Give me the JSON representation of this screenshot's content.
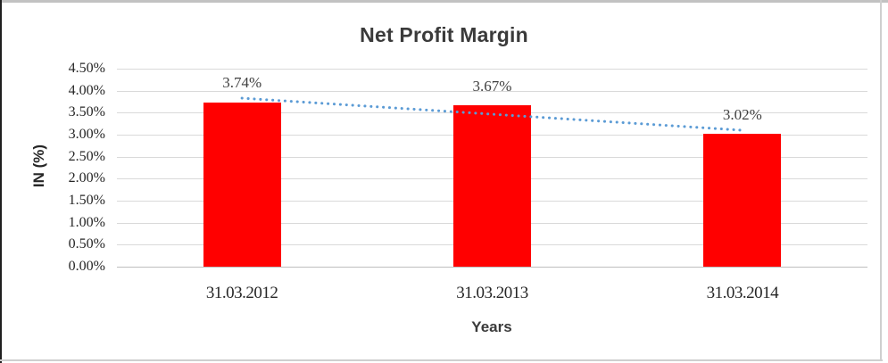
{
  "chart_data": {
    "type": "bar",
    "title": "Net Profit Margin",
    "xlabel": "Years",
    "ylabel": "IN (%)",
    "categories": [
      "31.03.2012",
      "31.03.2013",
      "31.03.2014"
    ],
    "values": [
      3.74,
      3.67,
      3.02
    ],
    "data_labels": [
      "3.74%",
      "3.67%",
      "3.02%"
    ],
    "yticks": [
      "4.50%",
      "4.00%",
      "3.50%",
      "3.00%",
      "2.50%",
      "2.00%",
      "1.50%",
      "1.00%",
      "0.50%",
      "0.00%"
    ],
    "ylim": [
      0,
      4.5
    ],
    "ytick_step": 0.5,
    "grid": "horizontal",
    "legend": "none",
    "bar_color": "#FF0000",
    "gridline_color": "#D9D9D9",
    "axis_line_color": "#BFBFBF",
    "trendline": {
      "style": "dotted",
      "color": "#5B9BD5",
      "start_value": 3.83,
      "end_value": 3.1
    }
  }
}
